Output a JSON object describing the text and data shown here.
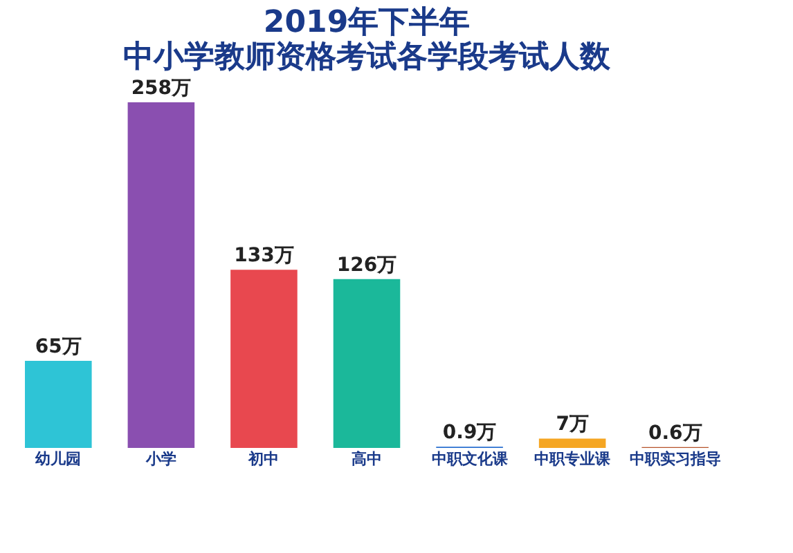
{
  "chart_data": {
    "type": "bar",
    "title": "2019年下半年",
    "subtitle": "中小学教师资格考试各学段考试人数",
    "categories": [
      "幼儿园",
      "小学",
      "初中",
      "高中",
      "中职文化课",
      "中职专业课",
      "中职实习指导"
    ],
    "values": [
      65,
      258,
      133,
      126,
      0.9,
      7,
      0.6
    ],
    "value_labels": [
      "65万",
      "258万",
      "133万",
      "126万",
      "0.9万",
      "7万",
      "0.6万"
    ],
    "colors": [
      "#2ec4d6",
      "#8a4fb0",
      "#e8484f",
      "#1bb89a",
      "#2a6fd0",
      "#f5a623",
      "#b5532a"
    ],
    "grid": false
  }
}
